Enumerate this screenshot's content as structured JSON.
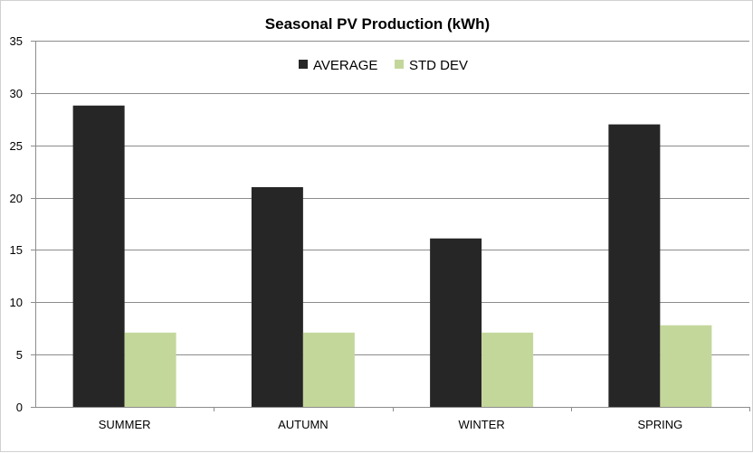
{
  "chart_data": {
    "type": "bar",
    "title": "Seasonal  PV Production  (kWh)",
    "xlabel": "",
    "ylabel": "",
    "categories": [
      "SUMMER",
      "AUTUMN",
      "WINTER",
      "SPRING"
    ],
    "series": [
      {
        "name": "AVERAGE",
        "color": "#262626",
        "values": [
          28.8,
          21.0,
          16.1,
          27.0
        ]
      },
      {
        "name": "STD DEV",
        "color": "#c4d79b",
        "values": [
          7.1,
          7.1,
          7.1,
          7.8
        ]
      }
    ],
    "ylim": [
      0,
      35
    ],
    "yticks": [
      0,
      5,
      10,
      15,
      20,
      25,
      30,
      35
    ],
    "grid": true,
    "legend_position": "top-center"
  }
}
